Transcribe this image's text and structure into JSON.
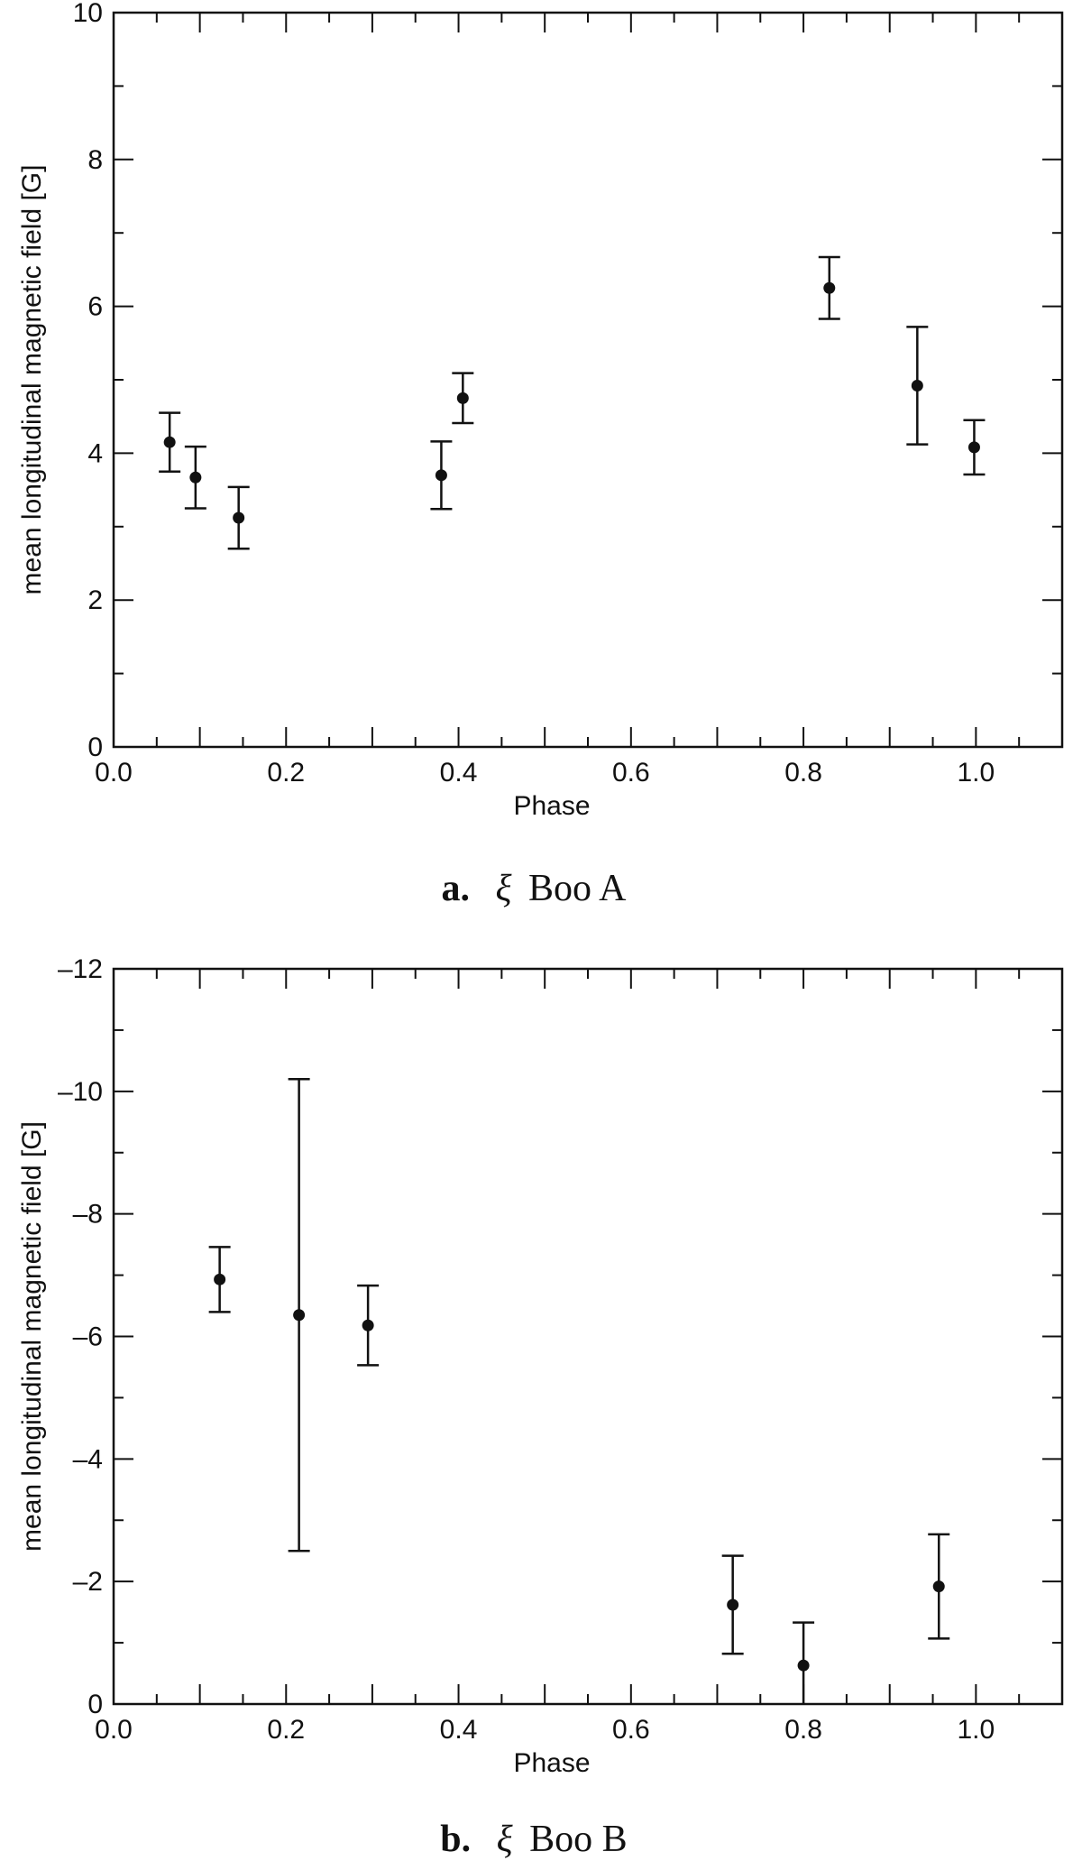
{
  "chart_data": [
    {
      "type": "scatter",
      "panel_letter": "a.",
      "caption_symbol": "ξ",
      "caption_text": "Boo A",
      "xlabel": "Phase",
      "ylabel": "mean longitudinal magnetic field [G]",
      "xlim": [
        0.0,
        1.1
      ],
      "ylim": [
        0,
        10
      ],
      "xticks": [
        "0.0",
        "0.2",
        "0.4",
        "0.6",
        "0.8",
        "1.0"
      ],
      "yticks": [
        "0",
        "2",
        "4",
        "6",
        "8",
        "10"
      ],
      "grid": false,
      "points": [
        {
          "x": 0.065,
          "y": 4.15,
          "err": 0.4
        },
        {
          "x": 0.095,
          "y": 3.67,
          "err": 0.42
        },
        {
          "x": 0.145,
          "y": 3.12,
          "err": 0.42
        },
        {
          "x": 0.38,
          "y": 3.7,
          "err": 0.46
        },
        {
          "x": 0.405,
          "y": 4.75,
          "err": 0.34
        },
        {
          "x": 0.83,
          "y": 6.25,
          "err": 0.42
        },
        {
          "x": 0.932,
          "y": 4.92,
          "err": 0.8
        },
        {
          "x": 0.998,
          "y": 4.08,
          "err": 0.37
        }
      ]
    },
    {
      "type": "scatter",
      "panel_letter": "b.",
      "caption_symbol": "ξ",
      "caption_text": "Boo B",
      "xlabel": "Phase",
      "ylabel": "mean longitudinal magnetic field [G]",
      "xlim": [
        0.0,
        1.1
      ],
      "ylim": [
        0,
        -12
      ],
      "xticks": [
        "0.0",
        "0.2",
        "0.4",
        "0.6",
        "0.8",
        "1.0"
      ],
      "yticks": [
        "0",
        "–2",
        "–4",
        "–6",
        "–8",
        "–10",
        "–12"
      ],
      "grid": false,
      "points": [
        {
          "x": 0.123,
          "y": -6.93,
          "err": 0.53
        },
        {
          "x": 0.215,
          "y": -6.35,
          "err": 3.85
        },
        {
          "x": 0.295,
          "y": -6.18,
          "err": 0.65
        },
        {
          "x": 0.718,
          "y": -1.62,
          "err": 0.8
        },
        {
          "x": 0.8,
          "y": -0.63,
          "err": 0.7
        },
        {
          "x": 0.957,
          "y": -1.92,
          "err": 0.85
        }
      ]
    }
  ]
}
